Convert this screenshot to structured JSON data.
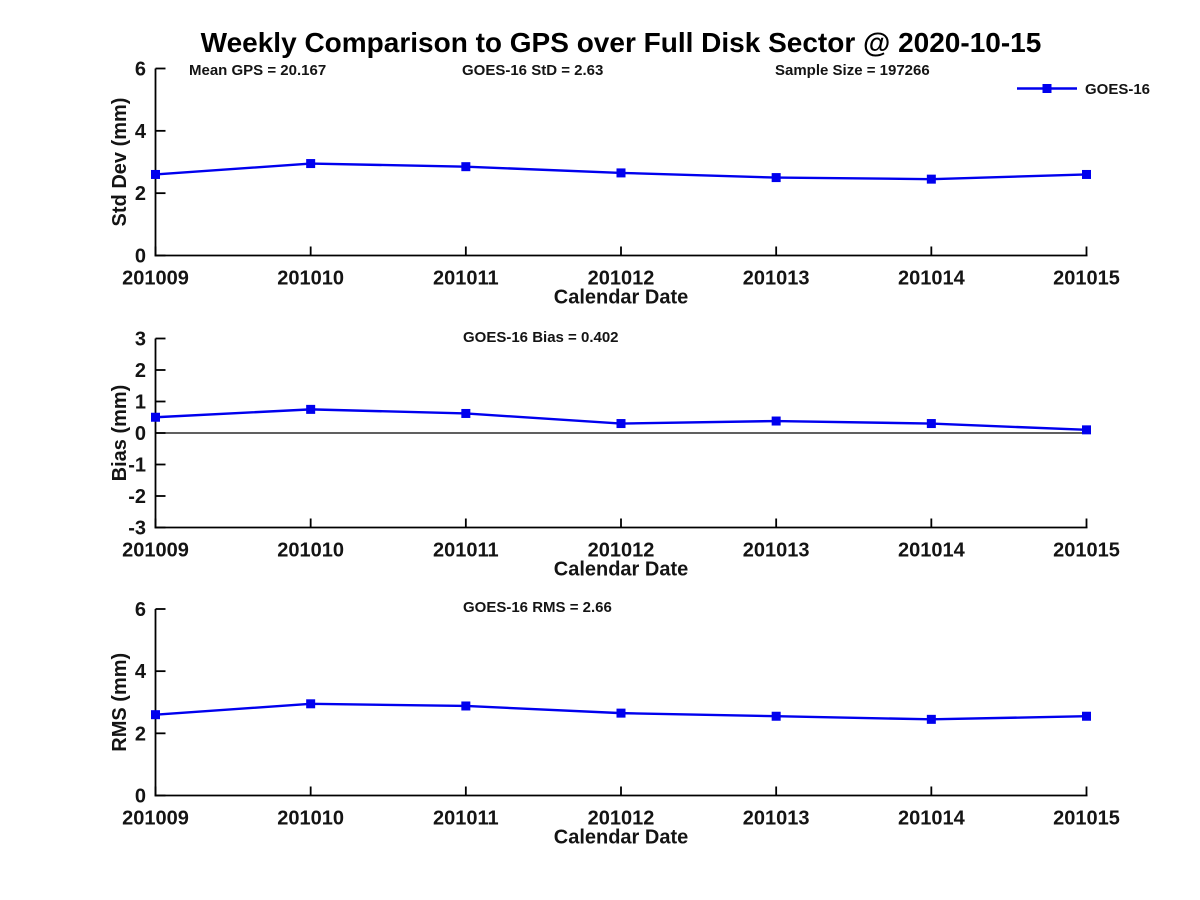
{
  "figure": {
    "title": "Weekly Comparison to GPS over Full Disk Sector @ 2020-10-15",
    "background": "#ffffff"
  },
  "colors": {
    "series": "#0000EE",
    "marker": "#0000EE",
    "axis": "#000000",
    "text": "#141414",
    "zero_line": "#000000"
  },
  "chart_data": [
    {
      "id": "stddev",
      "type": "line",
      "ylabel": "Std Dev (mm)",
      "xlabel": "Calendar Date",
      "ylim": [
        0,
        6
      ],
      "yticks": [
        0,
        2,
        4,
        6
      ],
      "categories": [
        "201009",
        "201010",
        "201011",
        "201012",
        "201013",
        "201014",
        "201015"
      ],
      "series": [
        {
          "name": "GOES-16",
          "values": [
            2.6,
            2.95,
            2.85,
            2.65,
            2.5,
            2.45,
            2.6
          ]
        }
      ],
      "annotations": [
        "Mean GPS = 20.167",
        "GOES-16 StD = 2.63",
        "Sample Size = 197266"
      ],
      "legend_label": "GOES-16",
      "grid": false,
      "marker": "square"
    },
    {
      "id": "bias",
      "type": "line",
      "ylabel": "Bias (mm)",
      "xlabel": "Calendar Date",
      "ylim": [
        -3,
        3
      ],
      "yticks": [
        3,
        2,
        1,
        0,
        -1,
        -2,
        -3
      ],
      "zero_line": true,
      "categories": [
        "201009",
        "201010",
        "201011",
        "201012",
        "201013",
        "201014",
        "201015"
      ],
      "series": [
        {
          "name": "GOES-16",
          "values": [
            0.5,
            0.75,
            0.62,
            0.3,
            0.38,
            0.3,
            0.1
          ]
        }
      ],
      "annotations": [
        "GOES-16 Bias  = 0.402"
      ],
      "grid": false,
      "marker": "square"
    },
    {
      "id": "rms",
      "type": "line",
      "ylabel": "RMS (mm)",
      "xlabel": "Calendar Date",
      "ylim": [
        0,
        6
      ],
      "yticks": [
        0,
        2,
        4,
        6
      ],
      "categories": [
        "201009",
        "201010",
        "201011",
        "201012",
        "201013",
        "201014",
        "201015"
      ],
      "series": [
        {
          "name": "GOES-16",
          "values": [
            2.6,
            2.95,
            2.88,
            2.65,
            2.55,
            2.45,
            2.55
          ]
        }
      ],
      "annotations": [
        "GOES-16 RMS  = 2.66"
      ],
      "grid": false,
      "marker": "square"
    }
  ]
}
